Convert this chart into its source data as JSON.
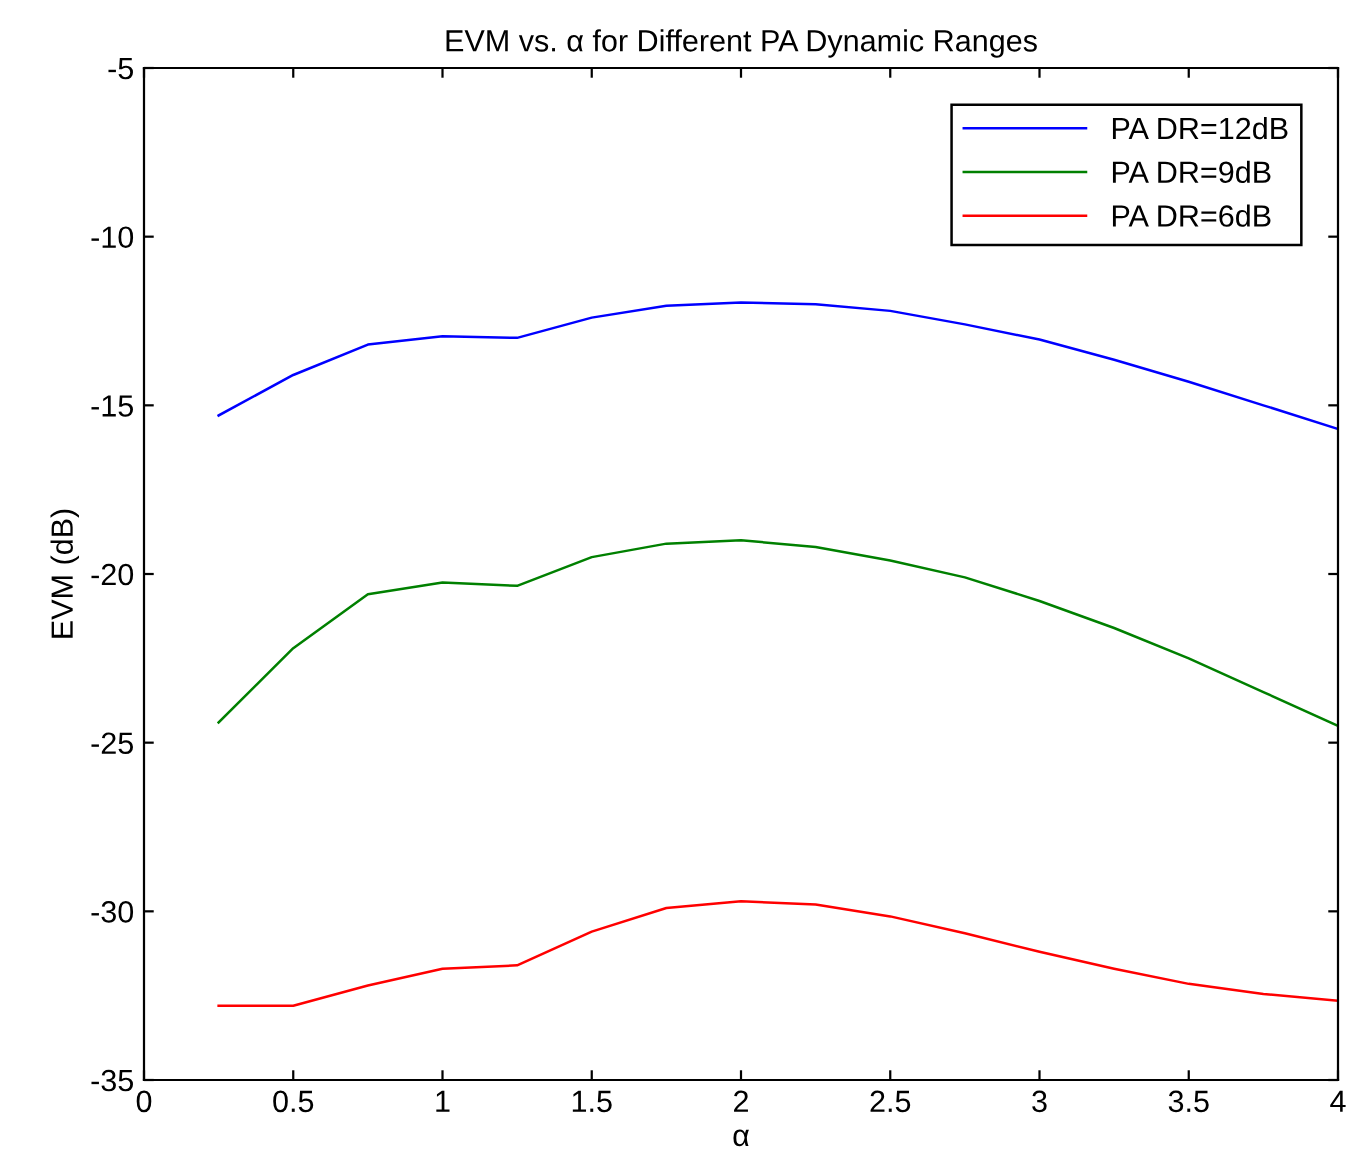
{
  "chart_data": {
    "type": "line",
    "title": "EVM vs. α for Different PA Dynamic Ranges",
    "xlabel": "α",
    "ylabel": "EVM (dB)",
    "x": [
      0.25,
      0.5,
      0.75,
      1,
      1.25,
      1.5,
      1.75,
      2,
      2.25,
      2.5,
      2.75,
      3,
      3.25,
      3.5,
      3.75,
      4
    ],
    "series": [
      {
        "name": "PA DR=12dB",
        "color": "#0000ff",
        "values": [
          -15.3,
          -14.1,
          -13.2,
          -12.95,
          -13.0,
          -12.4,
          -12.05,
          -11.95,
          -12.0,
          -12.2,
          -12.6,
          -13.05,
          -13.65,
          -14.3,
          -15.0,
          -15.7
        ]
      },
      {
        "name": "PA DR=9dB",
        "color": "#008000",
        "values": [
          -24.4,
          -22.2,
          -20.6,
          -20.25,
          -20.35,
          -19.5,
          -19.1,
          -19.0,
          -19.2,
          -19.6,
          -20.1,
          -20.8,
          -21.6,
          -22.5,
          -23.5,
          -24.5
        ]
      },
      {
        "name": "PA DR=6dB",
        "color": "#ff0000",
        "values": [
          -32.8,
          -32.8,
          -32.2,
          -31.7,
          -31.6,
          -30.6,
          -29.9,
          -29.7,
          -29.8,
          -30.15,
          -30.65,
          -31.2,
          -31.7,
          -32.15,
          -32.45,
          -32.65
        ]
      }
    ],
    "xlim": [
      0,
      4
    ],
    "ylim": [
      -35,
      -5
    ],
    "xticks": [
      0,
      0.5,
      1,
      1.5,
      2,
      2.5,
      3,
      3.5,
      4
    ],
    "yticks": [
      -35,
      -30,
      -25,
      -20,
      -15,
      -10,
      -5
    ],
    "grid": false,
    "legend": "top right",
    "marker": "none",
    "line_style": "solid"
  }
}
